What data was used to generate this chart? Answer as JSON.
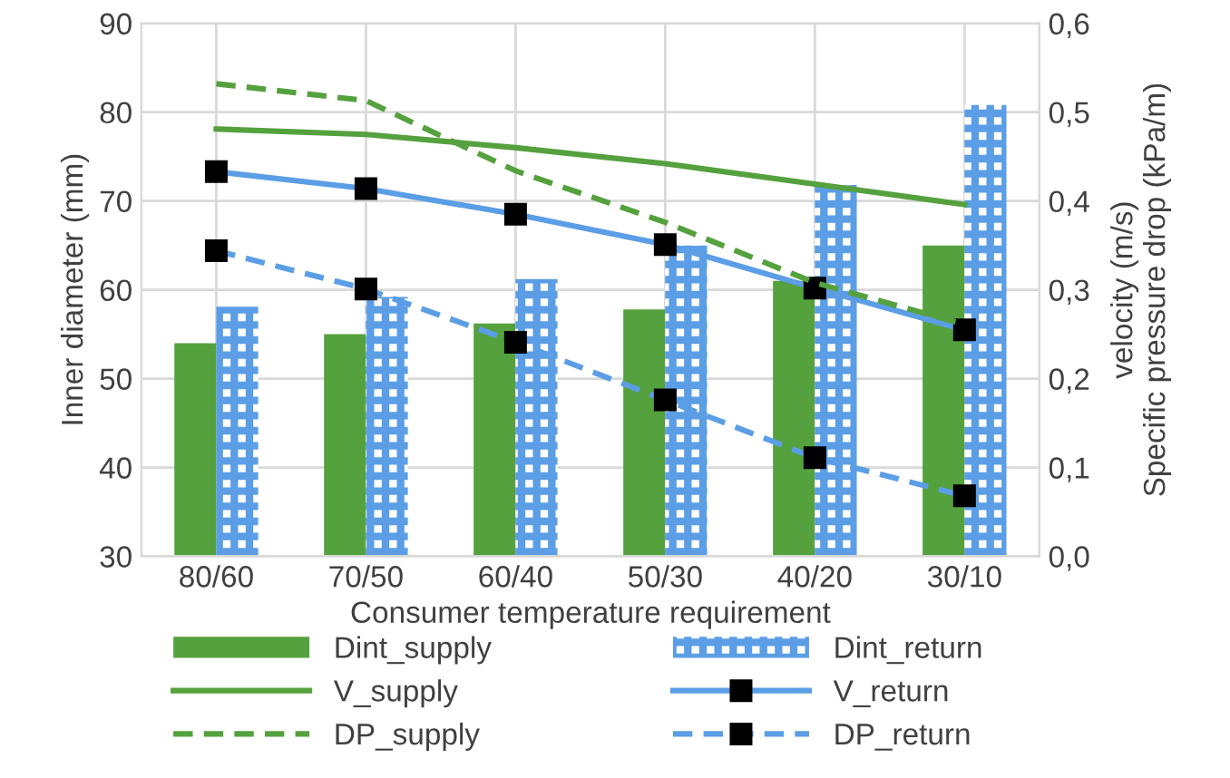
{
  "chart_data": {
    "type": "bar",
    "xlabel": "Consumer temperature requirement",
    "ylabel": "Inner diameter (mm)",
    "y2label": "velocity (m/s)\nSpecific pressure drop (kPa/m)",
    "categories": [
      "80/60",
      "70/50",
      "60/40",
      "50/30",
      "40/20",
      "30/10"
    ],
    "series": [
      {
        "name": "Dint_supply",
        "color": "#54a13e",
        "values": [
          54,
          55,
          56.2,
          57.8,
          61,
          65
        ]
      },
      {
        "name": "Dint_return",
        "color": "#5b9ee6",
        "values": [
          58.1,
          59.2,
          61.2,
          65,
          71.8,
          80.8
        ]
      },
      {
        "name": "V_supply",
        "type": "line",
        "axis": "y2",
        "color": "#54a13e",
        "line_style": "solid",
        "marker": "none",
        "values": [
          0.481,
          0.475,
          0.46,
          0.442,
          0.419,
          0.396
        ]
      },
      {
        "name": "V_return",
        "type": "line",
        "axis": "y2",
        "color": "#5b9ee6",
        "line_style": "solid",
        "marker": "square",
        "values": [
          0.433,
          0.414,
          0.385,
          0.351,
          0.302,
          0.255
        ]
      },
      {
        "name": "DP_supply",
        "type": "line",
        "axis": "y2",
        "color": "#54a13e",
        "line_style": "dashed",
        "marker": "none",
        "values": [
          0.532,
          0.513,
          0.434,
          0.376,
          0.308,
          0.261
        ]
      },
      {
        "name": "DP_return",
        "type": "line",
        "axis": "y2",
        "color": "#5b9ee6",
        "line_style": "dashed",
        "marker": "square",
        "values": [
          0.344,
          0.301,
          0.241,
          0.176,
          0.111,
          0.068
        ]
      }
    ],
    "ylim": [
      30,
      90
    ],
    "yticks": [
      30,
      40,
      50,
      60,
      70,
      80,
      90
    ],
    "y2lim": [
      0,
      0.6
    ],
    "y2ticks": [
      {
        "value": 0,
        "label": "0,0"
      },
      {
        "value": 0.1,
        "label": "0,1"
      },
      {
        "value": 0.2,
        "label": "0,2"
      },
      {
        "value": 0.3,
        "label": "0,3"
      },
      {
        "value": 0.4,
        "label": "0,4"
      },
      {
        "value": 0.5,
        "label": "0,5"
      },
      {
        "value": 0.6,
        "label": "0,6"
      }
    ],
    "grid": true,
    "legend": "bottom"
  }
}
